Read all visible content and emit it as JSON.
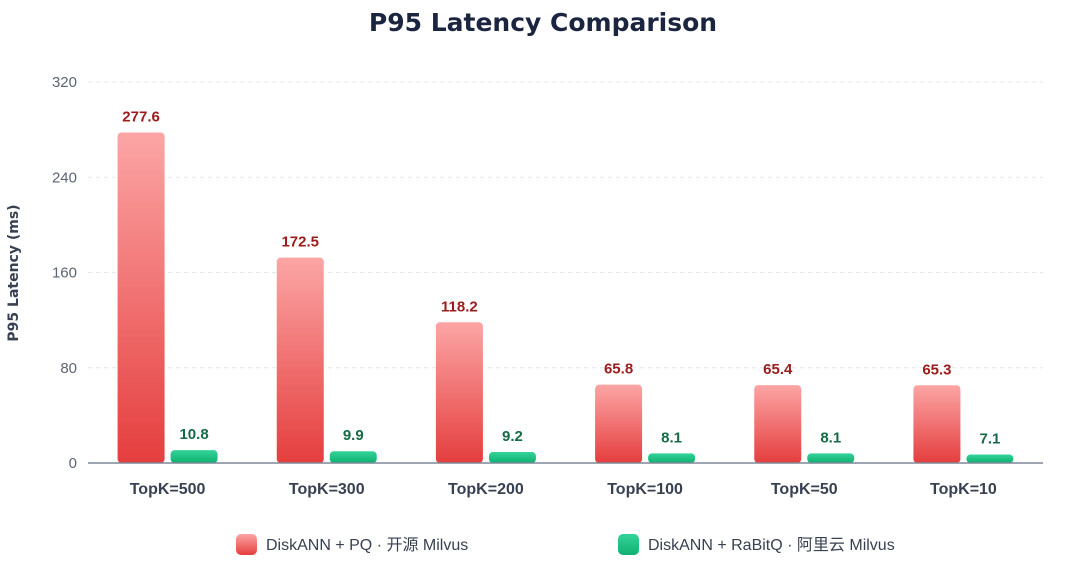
{
  "chart_data": {
    "type": "bar",
    "title": "P95 Latency Comparison",
    "ylabel": "P95 Latency (ms)",
    "xlabel": "",
    "ylim": [
      0,
      320
    ],
    "yticks": [
      0,
      80,
      160,
      240,
      320
    ],
    "grid": true,
    "legend_position": "bottom",
    "categories": [
      "TopK=500",
      "TopK=300",
      "TopK=200",
      "TopK=100",
      "TopK=50",
      "TopK=10"
    ],
    "series": [
      {
        "name": "DiskANN + PQ · 开源 Milvus",
        "values": [
          277.6,
          172.5,
          118.2,
          65.8,
          65.4,
          65.3
        ],
        "color": "#e53e3e",
        "color_light": "#fca5a5",
        "label_color": "#9b1c1c"
      },
      {
        "name": "DiskANN + RaBitQ · 阿里云 Milvus",
        "values": [
          10.8,
          9.9,
          9.2,
          8.1,
          8.1,
          7.1
        ],
        "color": "#10b071",
        "color_light": "#34d399",
        "label_color": "#166a46"
      }
    ]
  }
}
